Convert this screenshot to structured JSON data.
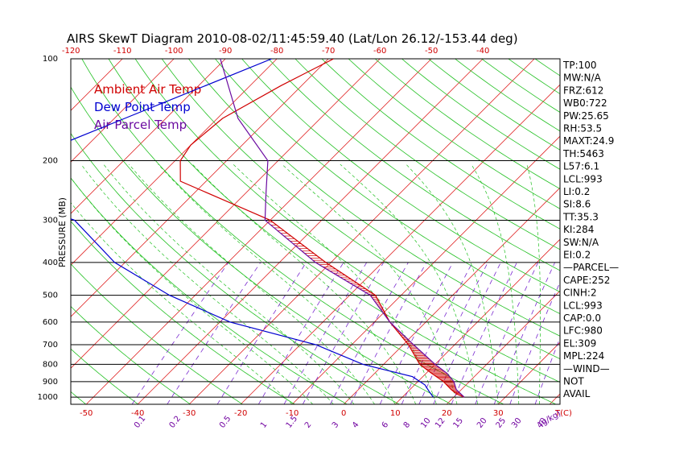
{
  "chart_data": {
    "type": "line",
    "title": "AIRS SkewT Diagram 2010-08-02/11:45:59.40 (Lat/Lon 26.12/-153.44 deg)",
    "ylabel": "PRESSURE (MB)",
    "xlabel_bottom": "T(C)",
    "xlabel_mixing": "(g/kg)",
    "y_scale": "log",
    "ylim": [
      1050,
      100
    ],
    "xlim_bottom": [
      -53,
      42
    ],
    "pressure_ticks": [
      "100",
      "200",
      "300",
      "400",
      "500",
      "600",
      "700",
      "800",
      "900",
      "1000"
    ],
    "top_temp_ticks": [
      "-120",
      "-110",
      "-100",
      "-90",
      "-80",
      "-70",
      "-60",
      "-50",
      "-40"
    ],
    "bottom_temp_ticks": [
      "-50",
      "-40",
      "-30",
      "-20",
      "-10",
      "0",
      "10",
      "20",
      "30"
    ],
    "mixing_ratio_ticks": [
      "0.1",
      "0.2",
      "0.5",
      "1",
      "1.5",
      "2",
      "3",
      "4",
      "6",
      "8",
      "10",
      "12",
      "15",
      "20",
      "25",
      "30",
      "40"
    ],
    "legend": [
      {
        "name": "Ambient Air Temp",
        "color": "#d00000"
      },
      {
        "name": "Dew Point Temp",
        "color": "#0000d0"
      },
      {
        "name": "Air Parcel Temp",
        "color": "#6a0aa0"
      }
    ],
    "indices": [
      "TP:100",
      "MW:N/A",
      "FRZ:612",
      "WB0:722",
      "PW:25.65",
      "RH:53.5",
      "MAXT:24.9",
      "TH:5463",
      "L57:6.1",
      "LCL:993",
      "LI:0.2",
      "SI:8.6",
      "TT:35.3",
      "KI:284",
      "SW:N/A",
      "EI:0.2",
      "—PARCEL—",
      "CAPE:252",
      "CINH:2",
      "LCL:993",
      "CAP:0.0",
      "LFC:980",
      "EL:309",
      "MPL:224",
      "—WIND—",
      "NOT",
      "AVAIL"
    ],
    "series": [
      {
        "name": "Ambient Air Temp",
        "color": "#d00000",
        "points": [
          [
            100,
            -69
          ],
          [
            120,
            -74
          ],
          [
            150,
            -79
          ],
          [
            180,
            -80
          ],
          [
            200,
            -79
          ],
          [
            230,
            -75
          ],
          [
            300,
            -50
          ],
          [
            400,
            -31
          ],
          [
            500,
            -15
          ],
          [
            600,
            -7
          ],
          [
            700,
            1
          ],
          [
            800,
            7
          ],
          [
            850,
            11
          ],
          [
            900,
            15
          ],
          [
            950,
            18
          ],
          [
            980,
            20
          ],
          [
            1000,
            22
          ]
        ]
      },
      {
        "name": "Dew Point Temp",
        "color": "#0000d0",
        "points": [
          [
            100,
            -81
          ],
          [
            150,
            -98
          ],
          [
            200,
            -110
          ],
          [
            250,
            -108
          ],
          [
            300,
            -88
          ],
          [
            400,
            -72
          ],
          [
            500,
            -55
          ],
          [
            600,
            -38
          ],
          [
            700,
            -17
          ],
          [
            800,
            -4
          ],
          [
            870,
            8
          ],
          [
            920,
            12
          ],
          [
            960,
            14
          ],
          [
            1000,
            16
          ]
        ]
      },
      {
        "name": "Air Parcel Temp",
        "color": "#6a0aa0",
        "points": [
          [
            100,
            -91
          ],
          [
            150,
            -76
          ],
          [
            200,
            -62
          ],
          [
            250,
            -56
          ],
          [
            300,
            -51
          ],
          [
            400,
            -33
          ],
          [
            500,
            -16
          ],
          [
            600,
            -7
          ],
          [
            700,
            2
          ],
          [
            800,
            10
          ],
          [
            850,
            14
          ],
          [
            900,
            17
          ],
          [
            950,
            19
          ],
          [
            1000,
            22
          ]
        ]
      }
    ]
  }
}
